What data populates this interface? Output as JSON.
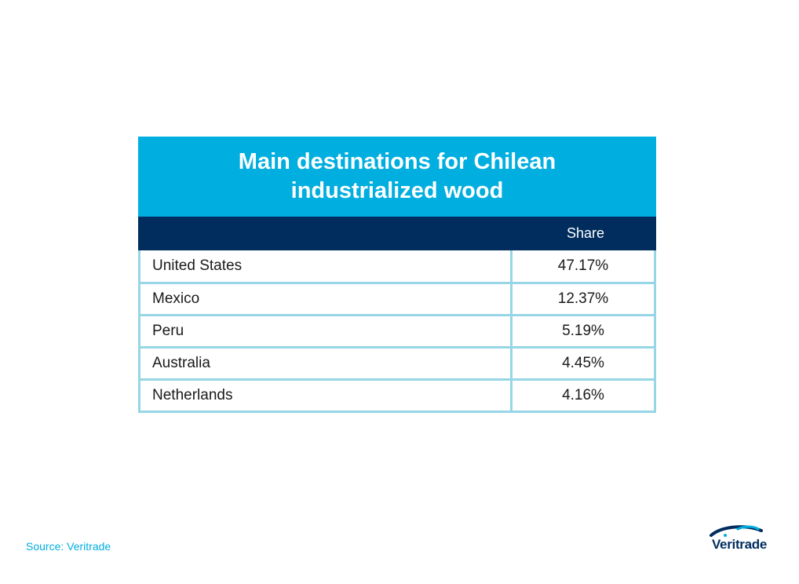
{
  "chart_data": {
    "type": "table",
    "title_lines": [
      "Main destinations for Chilean",
      "industrialized wood"
    ],
    "columns": [
      "",
      "Share"
    ],
    "rows": [
      {
        "country": "United States",
        "share": "47.17%"
      },
      {
        "country": "Mexico",
        "share": "12.37%"
      },
      {
        "country": "Peru",
        "share": "5.19%"
      },
      {
        "country": "Australia",
        "share": "4.45%"
      },
      {
        "country": "Netherlands",
        "share": "4.16%"
      }
    ]
  },
  "footer": {
    "source": "Source: Veritrade",
    "logo_text": "Veritrade"
  },
  "colors": {
    "title_bg": "#00aedf",
    "header_bg": "#002d5e",
    "grid": "#96d6e6",
    "source_text": "#00aedf"
  }
}
